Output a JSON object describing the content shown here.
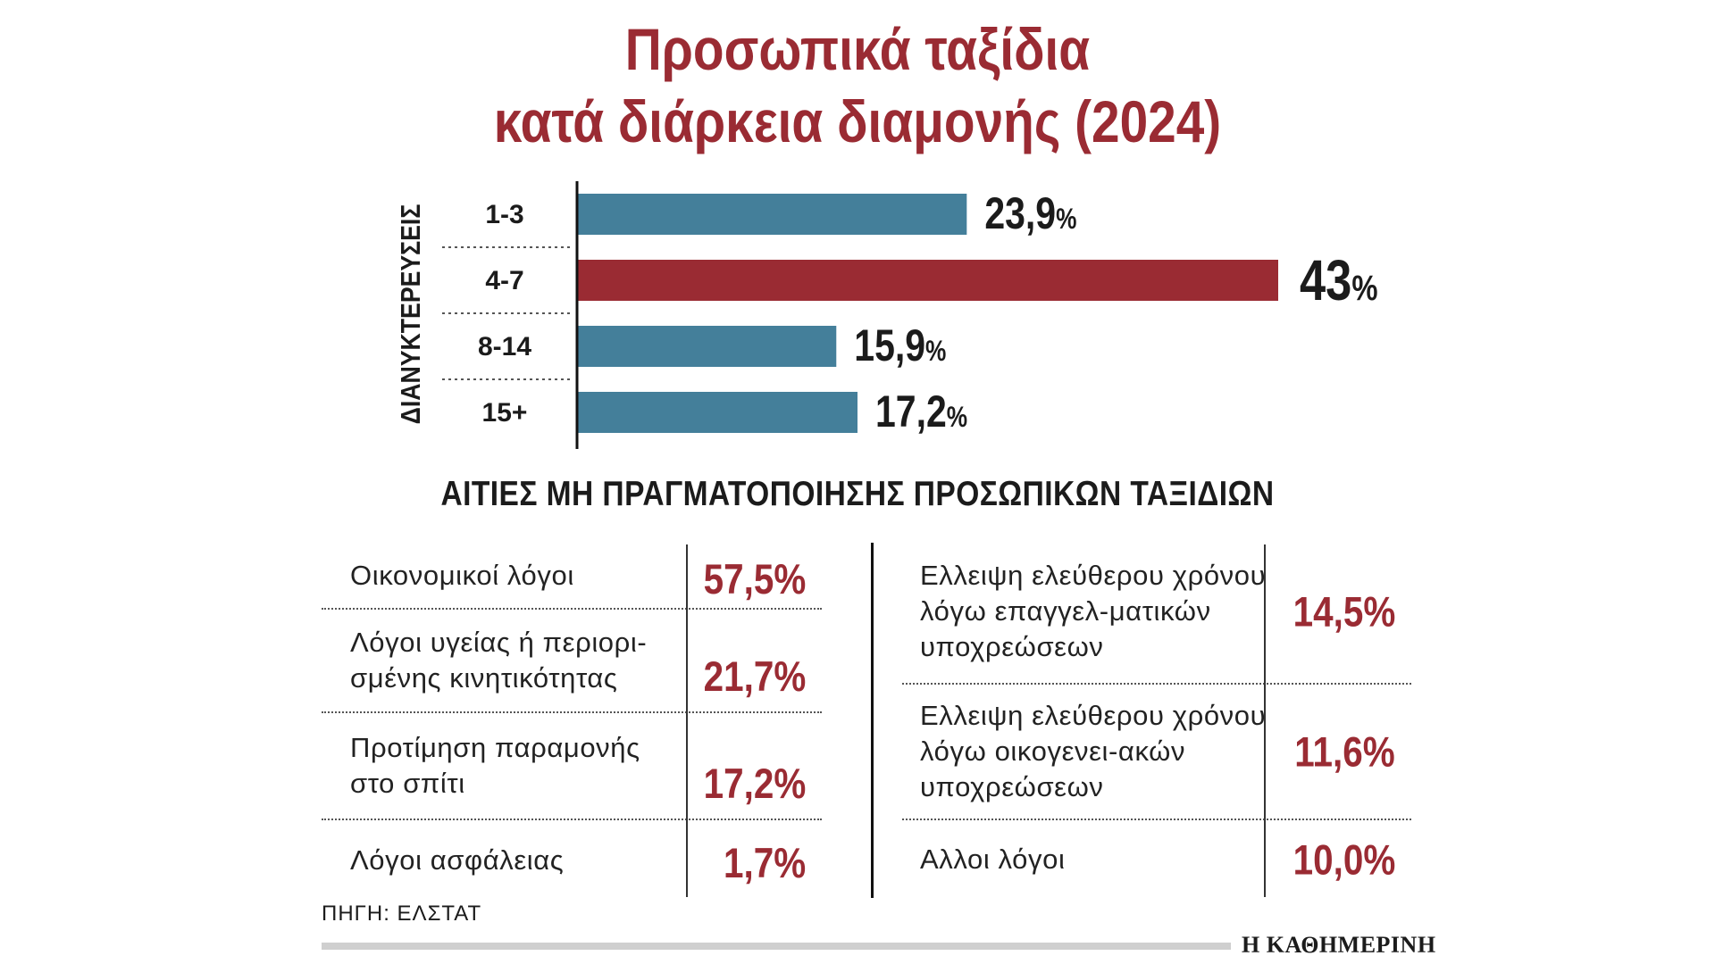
{
  "title": {
    "line1": "Προσωπικά ταξίδια",
    "line2": "κατά διάρκεια διαμονής (2024)"
  },
  "colors": {
    "accent": "#9a2b33",
    "bar": "#447f9a",
    "bar_highlight": "#9a2b33"
  },
  "chart_data": {
    "type": "bar",
    "orientation": "horizontal",
    "ylabel": "ΔΙΑΝΥΚΤΕΡΕΥΣΕΙΣ",
    "categories": [
      "1-3",
      "4-7",
      "8-14",
      "15+"
    ],
    "values": [
      23.9,
      43,
      15.9,
      17.2
    ],
    "value_labels": [
      "23,9",
      "43",
      "15,9",
      "17,2"
    ],
    "unit": "%",
    "highlight_index": 1,
    "xlim": [
      0,
      45
    ]
  },
  "reasons": {
    "heading": "ΑΙΤΙΕΣ ΜΗ ΠΡΑΓΜΑΤΟΠΟΙΗΣΗΣ ΠΡΟΣΩΠΙΚΩΝ ΤΑΞΙΔΙΩΝ",
    "left": [
      {
        "label": "Οικονομικοί λόγοι",
        "value": "57,5%"
      },
      {
        "label": "Λόγοι υγείας ή περιορι-σμένης κινητικότητας",
        "value": "21,7%"
      },
      {
        "label": "Προτίμηση παραμονής στο σπίτι",
        "value": "17,2%"
      },
      {
        "label": "Λόγοι ασφάλειας",
        "value": "1,7%"
      }
    ],
    "right": [
      {
        "label": "Ελλειψη ελεύθερου χρόνου λόγω επαγγελ-ματικών υποχρεώσεων",
        "value": "14,5%"
      },
      {
        "label": "Ελλειψη ελεύθερου χρόνου λόγω οικογενει-ακών υποχρεώσεων",
        "value": "11,6%"
      },
      {
        "label": "Αλλοι λόγοι",
        "value": "10,0%"
      }
    ]
  },
  "source": "ΠΗΓΗ: ΕΛΣΤΑΤ",
  "brand": "Η ΚΑΘΗΜΕΡΙΝΗ"
}
